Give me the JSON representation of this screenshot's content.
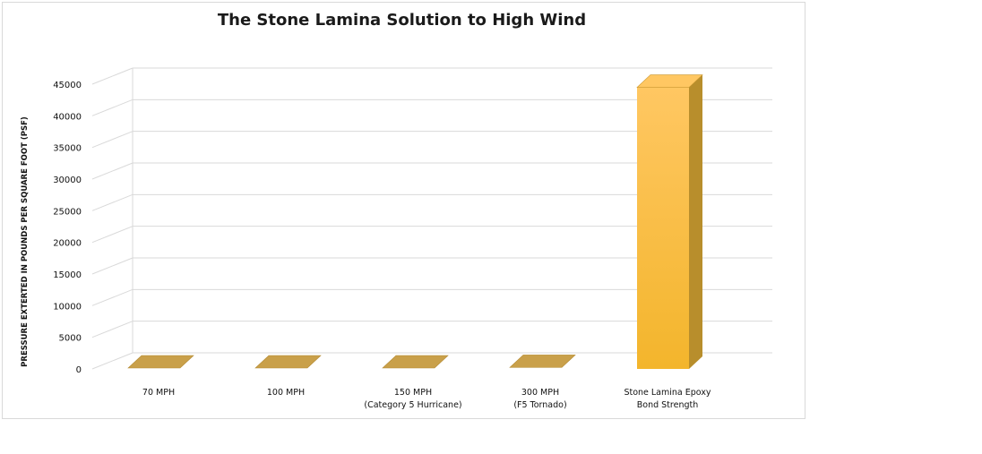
{
  "chart_data": {
    "type": "bar",
    "title": "The Stone Lamina Solution to High Wind",
    "xlabel": "",
    "ylabel": "PRESSURE EXTERTED  IN POUNDS PER SQUARE FOOT (PSF)",
    "ylim": [
      0,
      45000
    ],
    "yticks": [
      "0",
      "5000",
      "10000",
      "15000",
      "20000",
      "25000",
      "30000",
      "35000",
      "40000",
      "45000"
    ],
    "categories": [
      [
        "70 MPH"
      ],
      [
        "100 MPH"
      ],
      [
        "150 MPH",
        "(Category 5 Hurricane)"
      ],
      [
        "300 MPH",
        "(F5 Tornado)"
      ],
      [
        "Stone Lamina Epoxy",
        "Bond Strength"
      ]
    ],
    "values": [
      12.5,
      25.6,
      57.6,
      230.4,
      44500
    ],
    "grid": true,
    "legend": "none",
    "style": "3d-column",
    "colors": {
      "bar_top": "#ffc762",
      "bar_bottom": "#f3b52c",
      "bar_side": "#b88e2c",
      "bar_cap": "#c9a04a",
      "grid": "#d9d9d9"
    }
  }
}
